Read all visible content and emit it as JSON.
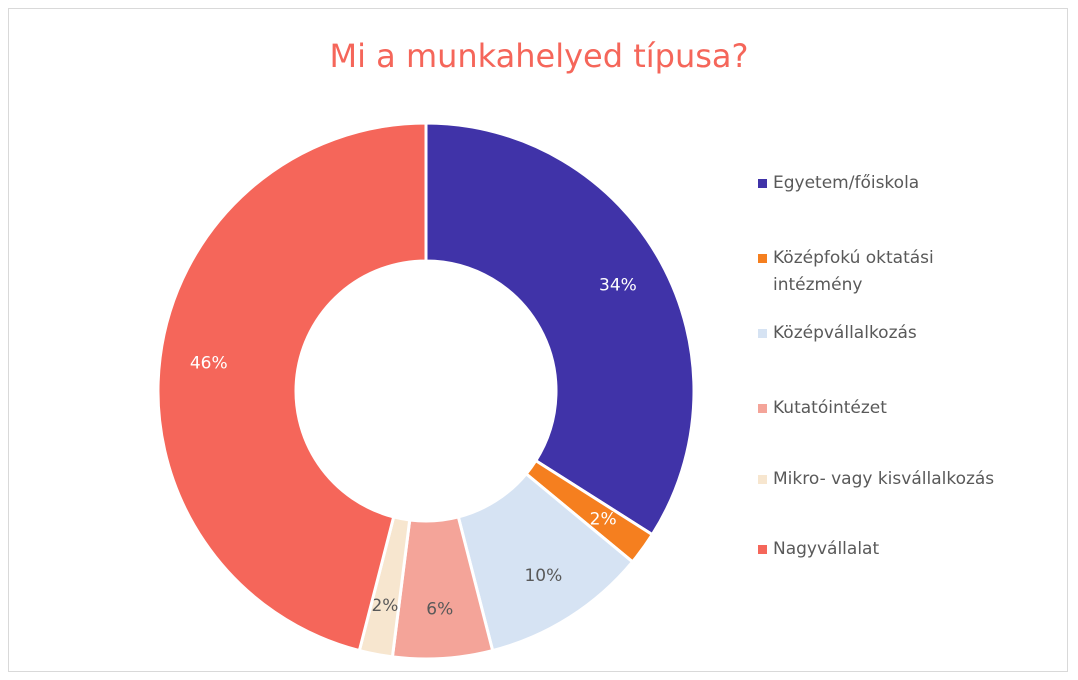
{
  "chart_data": {
    "type": "donut",
    "title": "Mi a munkahelyed típusa?",
    "categories": [
      "Egyetem/főiskola",
      "Középfokú oktatási intézmény",
      "Középvállalkozás",
      "Kutatóintézet",
      "Mikro- vagy kisvállalkozás",
      "Nagyvállalat"
    ],
    "values": [
      34,
      2,
      10,
      6,
      2,
      46
    ],
    "value_labels": [
      "34%",
      "2%",
      "10%",
      "6%",
      "2%",
      "46%"
    ],
    "colors": [
      "#4033a8",
      "#f57f1f",
      "#d6e3f3",
      "#f4a499",
      "#f7e6cf",
      "#f5665a"
    ],
    "legend": "right"
  }
}
